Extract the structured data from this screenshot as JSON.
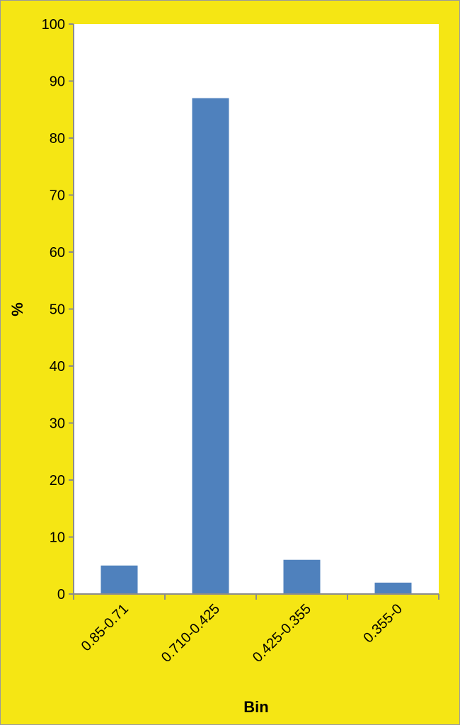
{
  "chart_data": {
    "type": "bar",
    "title": "",
    "xlabel": "Bin",
    "ylabel": "%",
    "categories": [
      "0.85-0.71",
      "0.710-0.425",
      "0.425-0.355",
      "0.355-0"
    ],
    "values": [
      5,
      87,
      6,
      2
    ],
    "ylim": [
      0,
      100
    ],
    "yticks": [
      0,
      10,
      20,
      30,
      40,
      50,
      60,
      70,
      80,
      90,
      100
    ],
    "grid": false,
    "legend": "none",
    "colors": {
      "bar": "#4f81bd",
      "background": "#f5e614",
      "plot_area": "#ffffff",
      "axis": "#8c8c8c"
    }
  }
}
